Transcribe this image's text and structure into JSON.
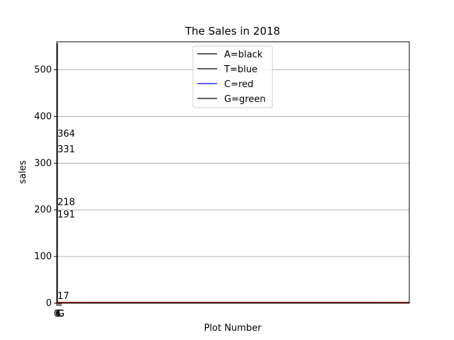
{
  "chart_data": {
    "type": "line",
    "title": "The Sales in 2018",
    "xlabel": "Plot Number",
    "ylabel": "sales",
    "xlim": [
      0,
      300
    ],
    "ylim": [
      0,
      560
    ],
    "grid": "y",
    "legend_placement": "top-center",
    "yticks": [
      0,
      100,
      200,
      300,
      400,
      500
    ],
    "xtick_labels": [
      "0",
      "6",
      "C",
      "G"
    ],
    "series": [
      {
        "name": "A=black",
        "color": "#000000",
        "values": [
          0,
          0,
          0
        ]
      },
      {
        "name": "T=blue",
        "color": "#000000",
        "values": [
          0,
          0,
          0
        ]
      },
      {
        "name": "C=red",
        "color": "#0000ff",
        "values": [
          0,
          0,
          0
        ]
      },
      {
        "name": "G=green",
        "color": "#000000",
        "values": [
          0,
          0,
          0
        ]
      }
    ],
    "annotations": [
      {
        "text": "364",
        "y": 364
      },
      {
        "text": "331",
        "y": 331
      },
      {
        "text": "218",
        "y": 218
      },
      {
        "text": "191",
        "y": 191
      },
      {
        "text": "17",
        "y": 17
      }
    ],
    "baseline_color": "#8b0000"
  }
}
